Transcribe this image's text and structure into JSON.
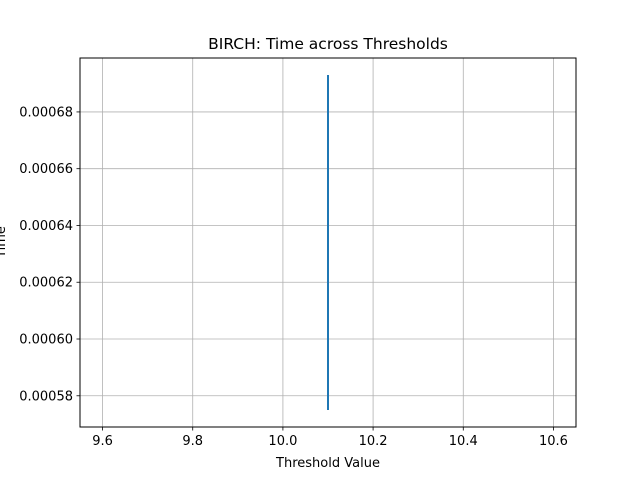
{
  "chart_data": {
    "type": "line",
    "title": "BIRCH: Time across Thresholds",
    "xlabel": "Threshold Value",
    "ylabel": "Time",
    "xlim": [
      9.55,
      10.65
    ],
    "ylim": [
      0.000569,
      0.000699
    ],
    "x_ticks": [
      "9.6",
      "9.8",
      "10.0",
      "10.2",
      "10.4",
      "10.6"
    ],
    "x_tick_values": [
      9.6,
      9.8,
      10.0,
      10.2,
      10.4,
      10.6
    ],
    "y_ticks": [
      "0.00058",
      "0.00060",
      "0.00062",
      "0.00064",
      "0.00066",
      "0.00068"
    ],
    "y_tick_values": [
      0.00058,
      0.0006,
      0.00062,
      0.00064,
      0.00066,
      0.00068
    ],
    "grid": true,
    "series": [
      {
        "color": "#1f77b4",
        "x": [
          10.1,
          10.1
        ],
        "y": [
          0.000575,
          0.000693
        ]
      }
    ]
  }
}
